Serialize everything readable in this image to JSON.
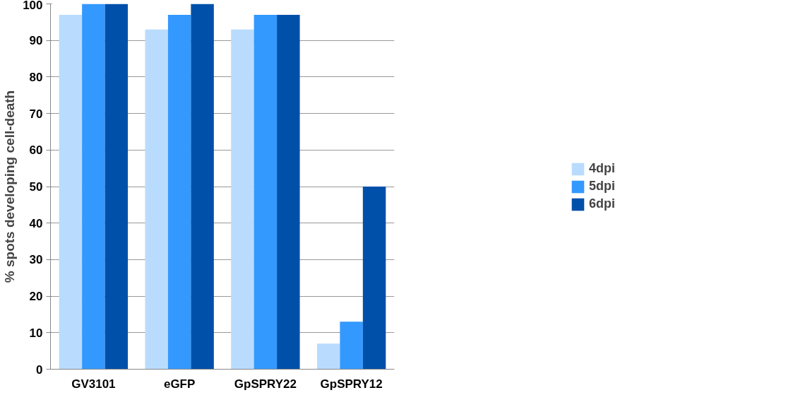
{
  "chart_data": {
    "type": "bar",
    "ylabel": "% spots developing cell-death",
    "categories": [
      "GV3101",
      "eGFP",
      "GpSPRY22",
      "GpSPRY12"
    ],
    "series": [
      {
        "name": "4dpi",
        "color": "#b9dcfe",
        "values": [
          97,
          93,
          93,
          7
        ]
      },
      {
        "name": "5dpi",
        "color": "#3399ff",
        "values": [
          100,
          97,
          97,
          13
        ]
      },
      {
        "name": "6dpi",
        "color": "#0050aa",
        "values": [
          100,
          100,
          97,
          50
        ]
      }
    ],
    "ylim": [
      0,
      100
    ],
    "yticks": [
      0,
      10,
      20,
      30,
      40,
      50,
      60,
      70,
      80,
      90,
      100
    ],
    "grid": "y",
    "legend": "right"
  }
}
